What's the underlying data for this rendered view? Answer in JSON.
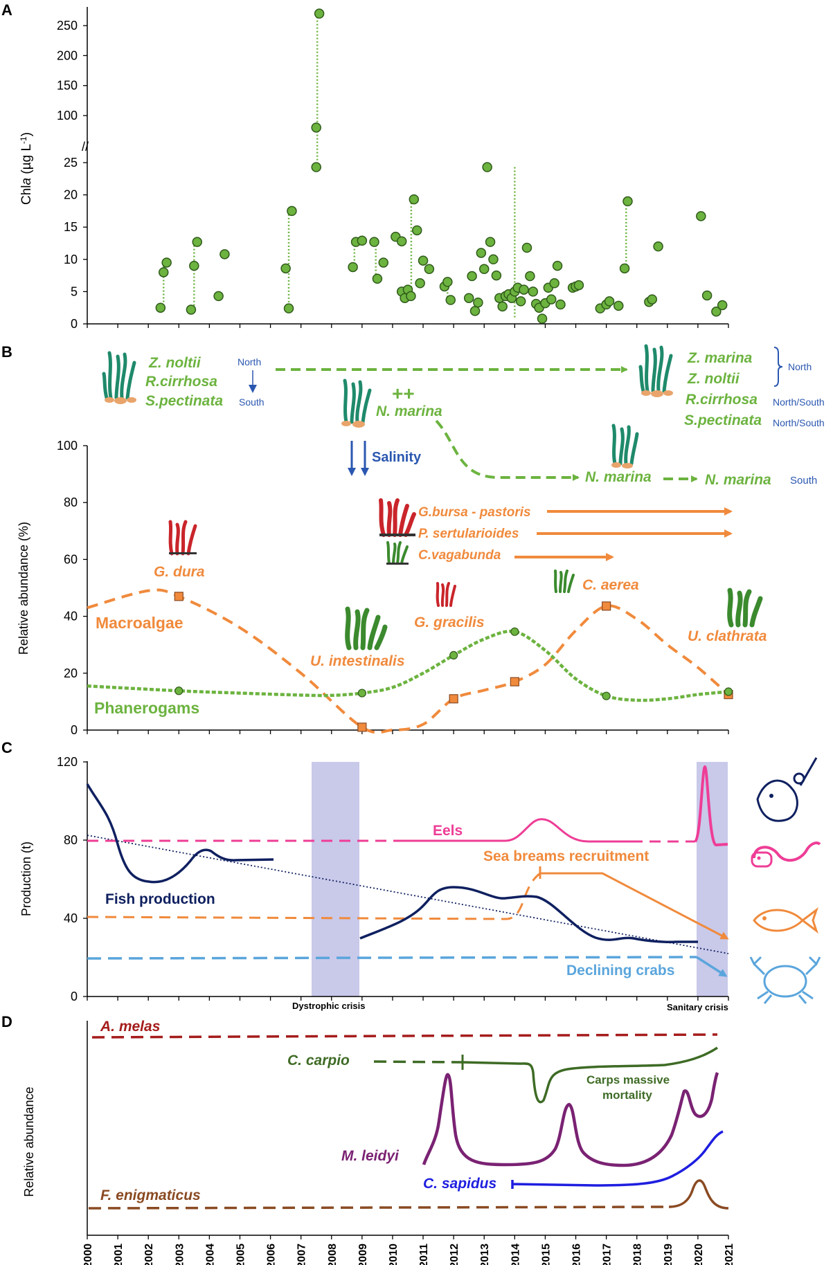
{
  "x_axis": {
    "years": [
      "2000",
      "2001",
      "2002",
      "2003",
      "2004",
      "2005",
      "2006",
      "2007",
      "2008",
      "2009",
      "2010",
      "2011",
      "2012",
      "2013",
      "2014",
      "2015",
      "2016",
      "2017",
      "2018",
      "2019",
      "2020",
      "2021"
    ]
  },
  "chart_data": [
    {
      "panel": "A",
      "type": "scatter",
      "ylabel_main": "Chl",
      "ylabel_italic": "a",
      "ylabel_unit": " (µg L",
      "ylabel_sup": "-1",
      "ylabel_close": ")",
      "y_ticks_low": [
        "0",
        "5",
        "10",
        "15",
        "20",
        "25"
      ],
      "y_ticks_high": [
        "100",
        "150",
        "200",
        "250"
      ],
      "axis_break": "//",
      "series": [
        {
          "name": "Chla",
          "points": [
            [
              2002.4,
              2.5
            ],
            [
              2002.5,
              8
            ],
            [
              2002.6,
              9.5
            ],
            [
              2003.4,
              2.2
            ],
            [
              2003.5,
              9
            ],
            [
              2003.6,
              12.7
            ],
            [
              2004.3,
              4.3
            ],
            [
              2004.5,
              10.8
            ],
            [
              2006.5,
              8.6
            ],
            [
              2006.6,
              2.4
            ],
            [
              2006.7,
              17.5
            ],
            [
              2007.5,
              24.3
            ],
            [
              2007.5,
              80
            ],
            [
              2007.6,
              270
            ],
            [
              2008.7,
              8.8
            ],
            [
              2008.8,
              12.7
            ],
            [
              2009,
              12.9
            ],
            [
              2009.4,
              12.7
            ],
            [
              2009.5,
              7
            ],
            [
              2009.7,
              9.5
            ],
            [
              2010.1,
              13.5
            ],
            [
              2010.3,
              12.8
            ],
            [
              2010.3,
              5
            ],
            [
              2010.4,
              4
            ],
            [
              2010.5,
              5.3
            ],
            [
              2010.6,
              4.3
            ],
            [
              2010.7,
              19.3
            ],
            [
              2010.8,
              14.5
            ],
            [
              2010.9,
              6.3
            ],
            [
              2011,
              9.8
            ],
            [
              2011.2,
              8.5
            ],
            [
              2011.7,
              5.8
            ],
            [
              2011.8,
              6.5
            ],
            [
              2011.9,
              3.7
            ],
            [
              2012.5,
              4
            ],
            [
              2012.6,
              7.4
            ],
            [
              2012.7,
              2
            ],
            [
              2012.8,
              3.3
            ],
            [
              2012.9,
              11
            ],
            [
              2013,
              8.5
            ],
            [
              2013.1,
              24.3
            ],
            [
              2013.2,
              12.7
            ],
            [
              2013.3,
              10
            ],
            [
              2013.4,
              7.5
            ],
            [
              2013.5,
              4
            ],
            [
              2013.6,
              2.7
            ],
            [
              2013.7,
              4.3
            ],
            [
              2013.8,
              4.6
            ],
            [
              2013.9,
              4
            ],
            [
              2014,
              5
            ],
            [
              2014.1,
              5.6
            ],
            [
              2014.2,
              3.5
            ],
            [
              2014.3,
              5.3
            ],
            [
              2014.4,
              11.8
            ],
            [
              2014.5,
              7.4
            ],
            [
              2014.6,
              5
            ],
            [
              2014.7,
              3.1
            ],
            [
              2014.8,
              2.5
            ],
            [
              2014.9,
              0.8
            ],
            [
              2015,
              3.2
            ],
            [
              2015.1,
              5.6
            ],
            [
              2015.2,
              3.8
            ],
            [
              2015.3,
              6.3
            ],
            [
              2015.4,
              9
            ],
            [
              2015.5,
              3
            ],
            [
              2015.9,
              5.6
            ],
            [
              2016,
              5.8
            ],
            [
              2016.1,
              6
            ],
            [
              2016.8,
              2.4
            ],
            [
              2017,
              3
            ],
            [
              2017.1,
              3.5
            ],
            [
              2017.4,
              2.8
            ],
            [
              2017.6,
              8.6
            ],
            [
              2017.7,
              19
            ],
            [
              2018.4,
              3.4
            ],
            [
              2018.5,
              3.8
            ],
            [
              2018.7,
              12
            ],
            [
              2020.1,
              16.7
            ],
            [
              2020.3,
              4.4
            ],
            [
              2020.6,
              1.9
            ],
            [
              2020.8,
              2.9
            ]
          ]
        }
      ]
    },
    {
      "panel": "B",
      "type": "line",
      "ylabel": "Relative abundance (%)",
      "y_ticks": [
        "0",
        "20",
        "40",
        "60",
        "80",
        "100"
      ],
      "ylim": [
        0,
        100
      ],
      "series": [
        {
          "name": "Macroalgae",
          "label": "Macroalgae",
          "color": "#f08a3c",
          "x": [
            2000,
            2002,
            2003,
            2005,
            2007,
            2009,
            2010,
            2011,
            2012,
            2013,
            2014,
            2015,
            2016,
            2017,
            2018,
            2019,
            2020,
            2021
          ],
          "y": [
            43,
            49,
            47,
            36,
            20,
            1,
            0,
            2,
            11,
            14,
            17,
            23,
            35,
            43.6,
            39,
            30,
            22,
            12.5
          ],
          "markers": [
            [
              2003,
              47
            ],
            [
              2009,
              1
            ],
            [
              2012,
              11
            ],
            [
              2014,
              17
            ],
            [
              2017,
              43.6
            ],
            [
              2021,
              12.5
            ]
          ]
        },
        {
          "name": "Phanerogams",
          "label": "Phanerogams",
          "color": "#6cb33f",
          "x": [
            2000,
            2003,
            2005,
            2007,
            2008,
            2009,
            2010,
            2011,
            2012,
            2013,
            2014,
            2015,
            2016,
            2017,
            2018,
            2019,
            2020,
            2021
          ],
          "y": [
            15.5,
            13.8,
            13,
            12.3,
            12.2,
            13,
            15,
            20,
            26.3,
            32,
            34.6,
            28,
            18,
            12,
            10.5,
            11,
            12.5,
            13.5
          ],
          "markers": [
            [
              2003,
              13.8
            ],
            [
              2009,
              13
            ],
            [
              2012,
              26.3
            ],
            [
              2014,
              34.6
            ],
            [
              2017,
              12
            ],
            [
              2021,
              13.5
            ]
          ]
        }
      ],
      "annotations": {
        "top_left_species": [
          "Z. noltii",
          "R.cirrhosa",
          "S.pectinata"
        ],
        "north": "North",
        "south": "South",
        "top_right_species": [
          "Z. marina",
          "Z. noltii",
          "R.cirrhosa",
          "S.pectinata"
        ],
        "north_south": "North/South",
        "plus_plus": "++",
        "n_marina": "N. marina",
        "salinity": "Salinity",
        "g_bursa": "G.bursa - pastoris",
        "p_sert": "P. sertularioides",
        "c_vagabunda": "C.vagabunda",
        "g_dura": "G. dura",
        "g_gracilis": "G. gracilis",
        "c_aerea": "C. aerea",
        "u_intestinalis": "U. intestinalis",
        "u_clathrata": "U. clathrata"
      }
    },
    {
      "panel": "C",
      "type": "line",
      "ylabel": "Production (t)",
      "y_ticks": [
        "0",
        "40",
        "80",
        "120"
      ],
      "ylim": [
        0,
        120
      ],
      "shaded_periods": [
        [
          2007.3,
          2008.9
        ],
        [
          2019.9,
          2020.9
        ]
      ],
      "shaded_labels": [
        "Dystrophic crisis",
        "Sanitary crisis"
      ],
      "series": [
        {
          "name": "Eels",
          "label": "Eels",
          "color": "#ee3d96"
        },
        {
          "name": "Sea breams recruitment",
          "label": "Sea breams recruitment",
          "color": "#f08a3c"
        },
        {
          "name": "Fish production",
          "label": "Fish production",
          "color": "#0f2060"
        },
        {
          "name": "Declining crabs",
          "label": "Declining crabs",
          "color": "#5aa5dc"
        }
      ],
      "trendline": {
        "from": [
          2000,
          82
        ],
        "to": [
          2021,
          21
        ]
      }
    },
    {
      "panel": "D",
      "type": "line",
      "ylabel": "Relative abundance",
      "series": [
        {
          "name": "A. melas",
          "color": "#a51c1c"
        },
        {
          "name": "C. carpio",
          "color": "#3e6b25"
        },
        {
          "name": "M. leidyi",
          "color": "#7a2273"
        },
        {
          "name": "C. sapidus",
          "color": "#1e1ee0"
        },
        {
          "name": "F. enigmaticus",
          "color": "#8a4a22"
        }
      ],
      "annotation": [
        "Carps massive",
        "mortality"
      ]
    }
  ],
  "panel_letters": [
    "A",
    "B",
    "C",
    "D"
  ]
}
